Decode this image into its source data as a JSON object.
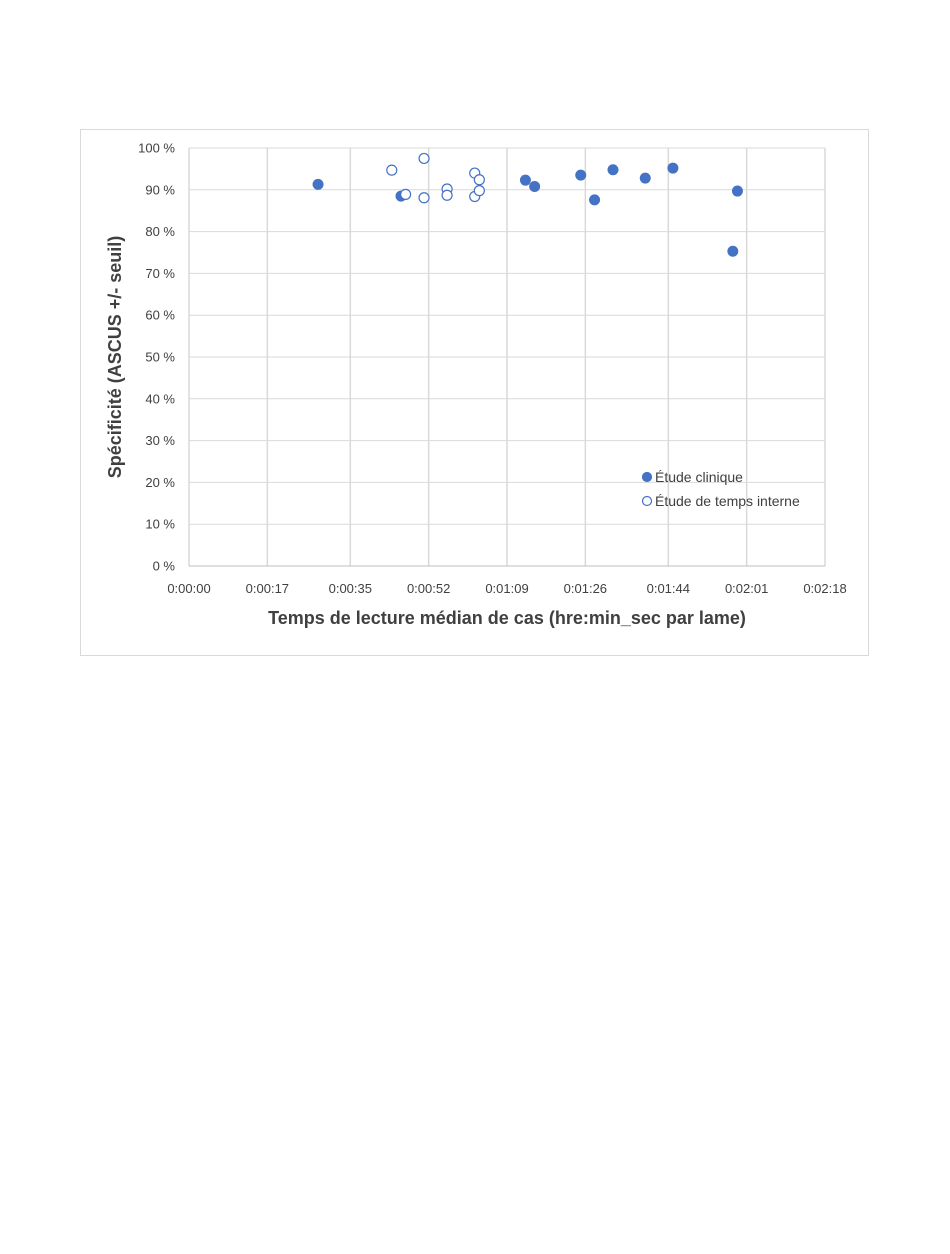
{
  "chart_data": {
    "type": "scatter",
    "xlabel": "Temps de lecture médian de cas (hre:min_sec par lame)",
    "ylabel": "Spécificité (ASCUS +/- seuil)",
    "x_unit": "hh:mm:ss",
    "xlim": [
      "0:00:00",
      "0:02:18"
    ],
    "ylim": [
      0,
      100
    ],
    "x_ticks": [
      "0:00:00",
      "0:00:17",
      "0:00:35",
      "0:00:52",
      "0:01:09",
      "0:01:26",
      "0:01:44",
      "0:02:01",
      "0:02:18"
    ],
    "y_ticks": [
      "0 %",
      "10 %",
      "20 %",
      "30 %",
      "40 %",
      "50 %",
      "60 %",
      "70 %",
      "80 %",
      "90 %",
      "100 %"
    ],
    "grid": true,
    "legend_position": "lower-right",
    "series": [
      {
        "name": "Étude clinique",
        "marker": "filled-circle",
        "color": "#4472C4",
        "points": [
          {
            "x": "0:00:28",
            "y": 91.3
          },
          {
            "x": "0:00:46",
            "y": 88.5
          },
          {
            "x": "0:01:13",
            "y": 92.3
          },
          {
            "x": "0:01:15",
            "y": 90.8
          },
          {
            "x": "0:01:25",
            "y": 93.5
          },
          {
            "x": "0:01:28",
            "y": 87.6
          },
          {
            "x": "0:01:32",
            "y": 94.8
          },
          {
            "x": "0:01:39",
            "y": 92.8
          },
          {
            "x": "0:01:45",
            "y": 95.2
          },
          {
            "x": "0:01:58",
            "y": 75.3
          },
          {
            "x": "0:01:59",
            "y": 89.7
          }
        ]
      },
      {
        "name": "Étude de temps interne",
        "marker": "open-circle",
        "color": "#4472C4",
        "points": [
          {
            "x": "0:00:44",
            "y": 94.7
          },
          {
            "x": "0:00:47",
            "y": 88.9
          },
          {
            "x": "0:00:51",
            "y": 97.5
          },
          {
            "x": "0:00:51",
            "y": 88.1
          },
          {
            "x": "0:00:56",
            "y": 90.2
          },
          {
            "x": "0:00:56",
            "y": 88.7
          },
          {
            "x": "0:01:02",
            "y": 94.0
          },
          {
            "x": "0:01:02",
            "y": 88.4
          },
          {
            "x": "0:01:03",
            "y": 92.4
          },
          {
            "x": "0:01:03",
            "y": 89.8
          }
        ]
      }
    ]
  }
}
